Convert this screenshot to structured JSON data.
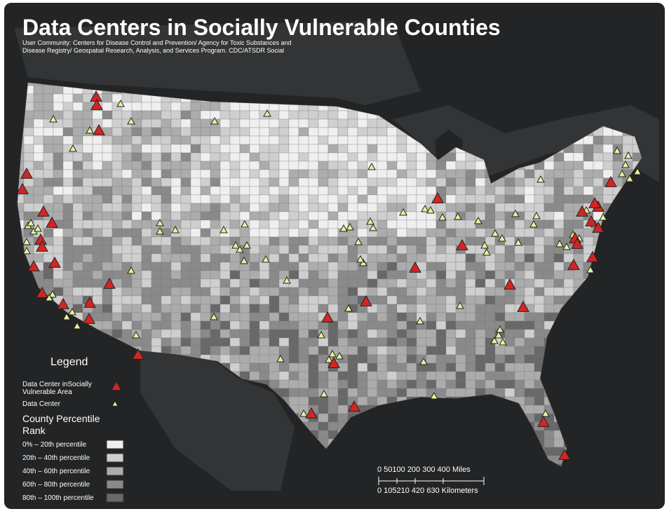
{
  "title": "Data Centers in Socially Vulnerable Counties",
  "subtitle_lines": [
    "User Community: Centers for Disease Control and Prevention/ Agency for Toxic Substances and",
    "Disease Registry/ Geospatial Research, Analysis, and Services Program. CDC/ATSDR Social"
  ],
  "legend": {
    "title": "Legend",
    "items": [
      {
        "label_lines": [
          "Data Center inSocially",
          "Vulnerable Area"
        ],
        "color": "#d42424"
      },
      {
        "label_lines": [
          "Data Center"
        ],
        "color": "#e3f59b"
      }
    ],
    "rank_title_lines": [
      "County Percentile",
      "Rank"
    ],
    "classes": [
      {
        "label": "0%  –  20th  percentile",
        "color": "#efefef"
      },
      {
        "label": "20th  –  40th  percentile",
        "color": "#cfcfcf"
      },
      {
        "label": "40th  –  60th  percentile",
        "color": "#acacac"
      },
      {
        "label": "60th  –  80th  percentile",
        "color": "#8a8a8a"
      },
      {
        "label": "80th – 100th percentile",
        "color": "#686868"
      }
    ]
  },
  "scale_bar": {
    "miles": "0 50100 200 300 400 Miles",
    "kilometers": "0 105210 420 630 Kilometers"
  }
}
